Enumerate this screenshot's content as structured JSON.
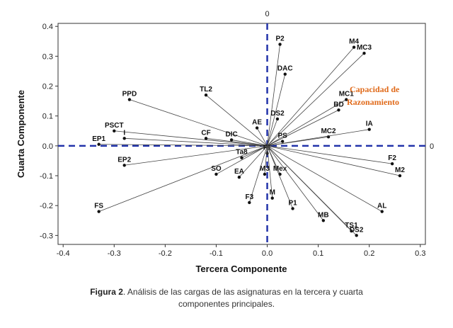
{
  "chart_data": {
    "type": "scatter",
    "xlabel": "Tercera Componente",
    "ylabel": "Cuarta Componente",
    "xlim": [
      -0.41,
      0.31
    ],
    "ylim": [
      -0.33,
      0.41
    ],
    "xticks": [
      "-0.4",
      "-0.3",
      "-0.2",
      "-0.1",
      "0.0",
      "0.1",
      "0.2",
      "0.3"
    ],
    "yticks": [
      "-0.3",
      "-0.2",
      "-0.1",
      "0.0",
      "0.1",
      "0.2",
      "0.3",
      "0.4"
    ],
    "reference_line_label": "0",
    "annotation": [
      "Capacidad de",
      "Razonamiento"
    ],
    "points": [
      {
        "label": "P2",
        "x": 0.025,
        "y": 0.34
      },
      {
        "label": "M4",
        "x": 0.17,
        "y": 0.33
      },
      {
        "label": "MC3",
        "x": 0.19,
        "y": 0.31
      },
      {
        "label": "DAC",
        "x": 0.035,
        "y": 0.24
      },
      {
        "label": "MC1",
        "x": 0.155,
        "y": 0.155
      },
      {
        "label": "BD",
        "x": 0.14,
        "y": 0.12
      },
      {
        "label": "DS2",
        "x": 0.02,
        "y": 0.09
      },
      {
        "label": "MC2",
        "x": 0.12,
        "y": 0.03
      },
      {
        "label": "IA",
        "x": 0.2,
        "y": 0.055
      },
      {
        "label": "PS",
        "x": 0.03,
        "y": 0.015
      },
      {
        "label": "AE",
        "x": -0.02,
        "y": 0.06
      },
      {
        "label": "TL2",
        "x": -0.12,
        "y": 0.17
      },
      {
        "label": "PPD",
        "x": -0.27,
        "y": 0.155
      },
      {
        "label": "PSCT",
        "x": -0.3,
        "y": 0.05
      },
      {
        "label": "EP1",
        "x": -0.33,
        "y": 0.005
      },
      {
        "label": "I",
        "x": -0.28,
        "y": 0.025
      },
      {
        "label": "CF",
        "x": -0.12,
        "y": 0.025
      },
      {
        "label": "DIC",
        "x": -0.07,
        "y": 0.02
      },
      {
        "label": "EP2",
        "x": -0.28,
        "y": -0.065
      },
      {
        "label": "Ta8",
        "x": -0.05,
        "y": -0.04
      },
      {
        "label": "SO",
        "x": -0.1,
        "y": -0.095
      },
      {
        "label": "EA",
        "x": -0.055,
        "y": -0.105
      },
      {
        "label": "F1",
        "x": 0.0,
        "y": -0.025
      },
      {
        "label": "M3",
        "x": -0.005,
        "y": -0.095
      },
      {
        "label": "Mex",
        "x": 0.025,
        "y": -0.095
      },
      {
        "label": "F3",
        "x": -0.035,
        "y": -0.19
      },
      {
        "label": "M",
        "x": 0.01,
        "y": -0.175
      },
      {
        "label": "P1",
        "x": 0.05,
        "y": -0.21
      },
      {
        "label": "FS",
        "x": -0.33,
        "y": -0.22
      },
      {
        "label": "MB",
        "x": 0.11,
        "y": -0.25
      },
      {
        "label": "TS1",
        "x": 0.165,
        "y": -0.285
      },
      {
        "label": "DS2",
        "x": 0.175,
        "y": -0.3
      },
      {
        "label": "AL",
        "x": 0.225,
        "y": -0.22
      },
      {
        "label": "F2",
        "x": 0.245,
        "y": -0.06
      },
      {
        "label": "M2",
        "x": 0.26,
        "y": -0.1
      }
    ]
  },
  "caption": {
    "prefix": "Figura 2",
    "line1": ". Análisis de las cargas de las asignaturas en la tercera y cuarta",
    "line2": "componentes principales."
  }
}
